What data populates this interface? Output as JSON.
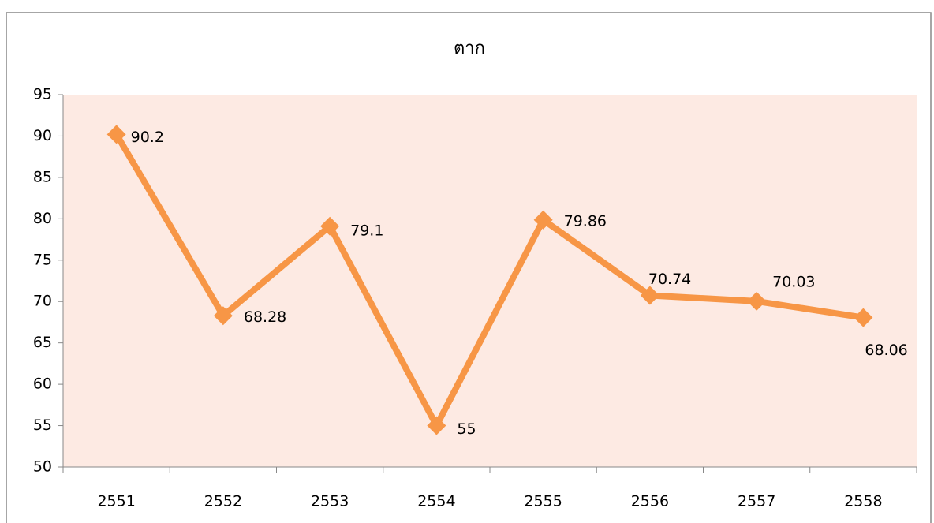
{
  "chart_data": {
    "type": "line",
    "title": "ตาก",
    "categories": [
      "2551",
      "2552",
      "2553",
      "2554",
      "2555",
      "2556",
      "2557",
      "2558"
    ],
    "values": [
      90.2,
      68.28,
      79.1,
      55,
      79.86,
      70.74,
      70.03,
      68.06
    ],
    "color": "#f79646",
    "plot_background": "#fdeae3",
    "ylim": [
      50,
      95
    ],
    "yticks": [
      50,
      55,
      60,
      65,
      70,
      75,
      80,
      85,
      90,
      95
    ],
    "grid": false
  }
}
